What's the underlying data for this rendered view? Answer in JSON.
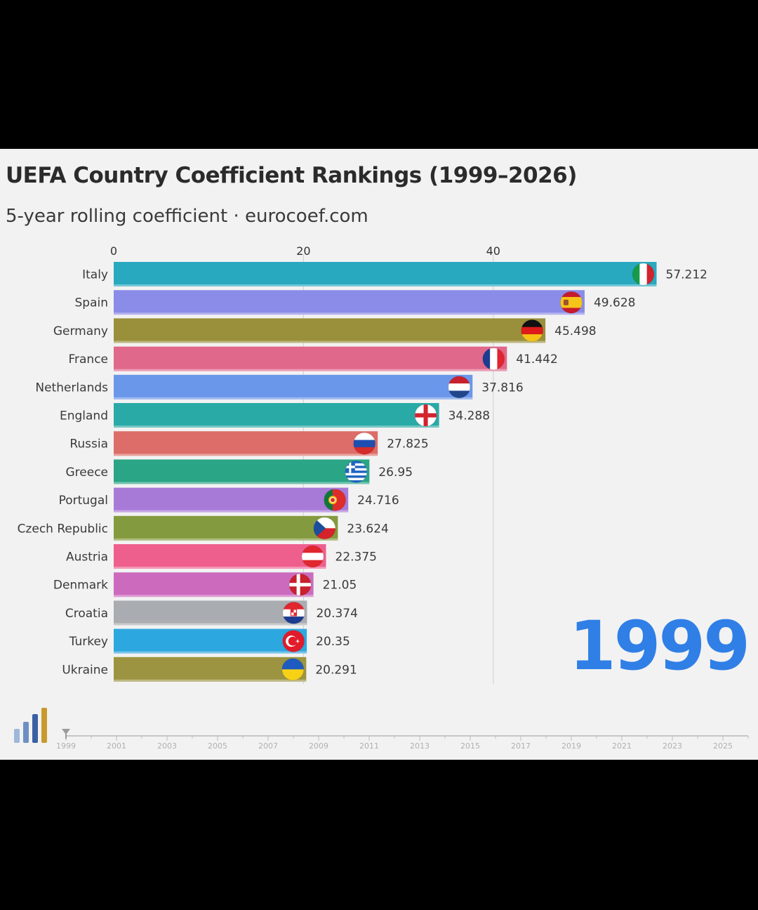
{
  "title": "UEFA Country Coefficient Rankings (1999–2026)",
  "subtitle": "5-year rolling coefficient · eurocoef.com",
  "current_year": "1999",
  "colors": {
    "background": "#f2f2f2",
    "year_label": "#2f7fe6",
    "text": "#333333"
  },
  "chart_data": {
    "type": "bar",
    "orientation": "horizontal",
    "title": "UEFA Country Coefficient Rankings (1999–2026)",
    "subtitle": "5-year rolling coefficient · eurocoef.com",
    "xlabel": "",
    "ylabel": "",
    "xlim": [
      0,
      57.212
    ],
    "x_ticks": [
      0,
      20,
      40
    ],
    "grid": true,
    "categories": [
      "Italy",
      "Spain",
      "Germany",
      "France",
      "Netherlands",
      "England",
      "Russia",
      "Greece",
      "Portugal",
      "Czech Republic",
      "Austria",
      "Denmark",
      "Croatia",
      "Turkey",
      "Ukraine"
    ],
    "values": [
      57.212,
      49.628,
      45.498,
      41.442,
      37.816,
      34.288,
      27.825,
      26.95,
      24.716,
      23.624,
      22.375,
      21.05,
      20.374,
      20.35,
      20.291
    ],
    "value_labels": [
      "57.212",
      "49.628",
      "45.498",
      "41.442",
      "37.816",
      "34.288",
      "27.825",
      "26.95",
      "24.716",
      "23.624",
      "22.375",
      "21.05",
      "20.374",
      "20.35",
      "20.291"
    ],
    "bar_colors": [
      "#29a9bf",
      "#8b8be8",
      "#9a8f3b",
      "#e0688a",
      "#6b97ea",
      "#2aaaa6",
      "#dc6d68",
      "#2aa586",
      "#a87ad8",
      "#849a3e",
      "#ee5f8e",
      "#cc6bbd",
      "#a9acb0",
      "#2da7df",
      "#9c9440"
    ],
    "flag_icons": [
      "italy-flag-icon",
      "spain-flag-icon",
      "germany-flag-icon",
      "france-flag-icon",
      "netherlands-flag-icon",
      "england-flag-icon",
      "russia-flag-icon",
      "greece-flag-icon",
      "portugal-flag-icon",
      "czech-republic-flag-icon",
      "austria-flag-icon",
      "denmark-flag-icon",
      "croatia-flag-icon",
      "turkey-flag-icon",
      "ukraine-flag-icon"
    ]
  },
  "timeline": {
    "years": [
      "1999",
      "2001",
      "2003",
      "2005",
      "2007",
      "2009",
      "2011",
      "2013",
      "2015",
      "2017",
      "2019",
      "2021",
      "2023",
      "2025"
    ],
    "start": 1999,
    "end": 2026,
    "current": 1999
  },
  "logo_icon": "bar-chart-logo-icon"
}
